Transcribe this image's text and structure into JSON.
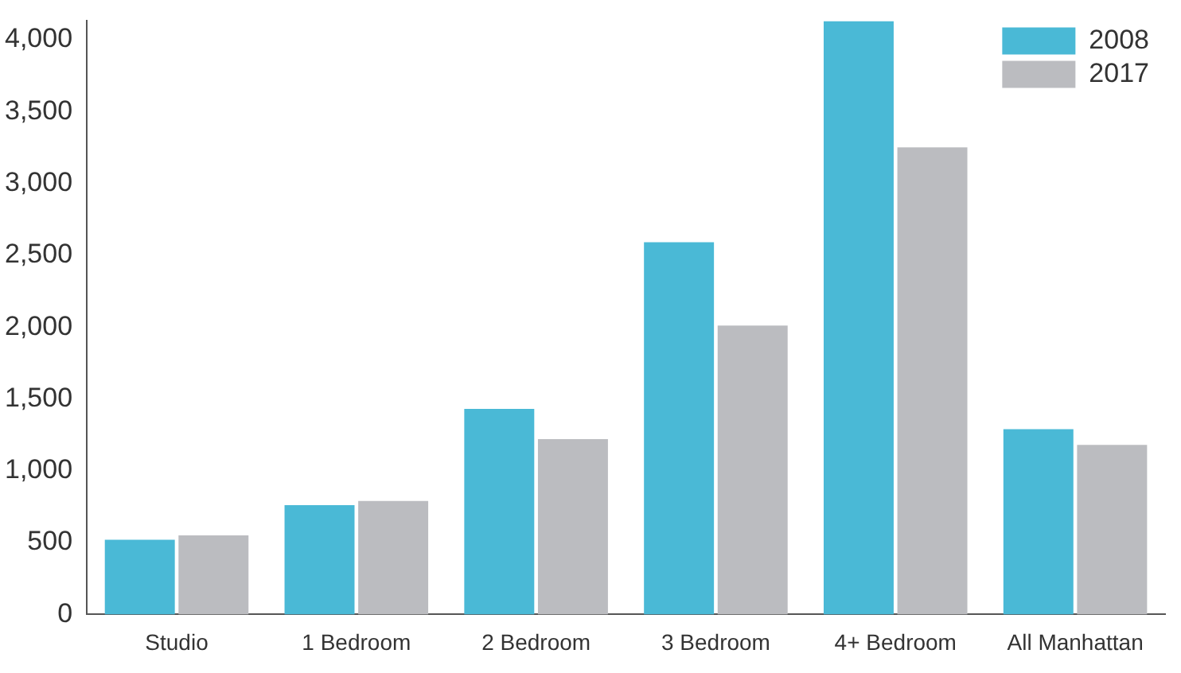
{
  "chart_data": {
    "type": "bar",
    "categories": [
      "Studio",
      "1 Bedroom",
      "2 Bedroom",
      "3 Bedroom",
      "4+ Bedroom",
      "All Manhattan"
    ],
    "series": [
      {
        "name": "2008",
        "color": "#4ab9d6",
        "values": [
          520,
          760,
          1430,
          2590,
          4130,
          1290
        ]
      },
      {
        "name": "2017",
        "color": "#bbbcc0",
        "values": [
          550,
          790,
          1220,
          2010,
          3250,
          1180
        ]
      }
    ],
    "ylim": [
      0,
      4130
    ],
    "yticks": [
      0,
      {
        "value": 500,
        "label": "500"
      },
      {
        "value": 1000,
        "label": "1,000"
      },
      {
        "value": 1500,
        "label": "1,500"
      },
      {
        "value": 2000,
        "label": "2,000"
      },
      {
        "value": 2500,
        "label": "2,500"
      },
      {
        "value": 3000,
        "label": "3,000"
      },
      {
        "value": 3500,
        "label": "3,500"
      },
      {
        "value": 4000,
        "label": "4,000"
      }
    ],
    "grid": false,
    "legend": "top right"
  }
}
